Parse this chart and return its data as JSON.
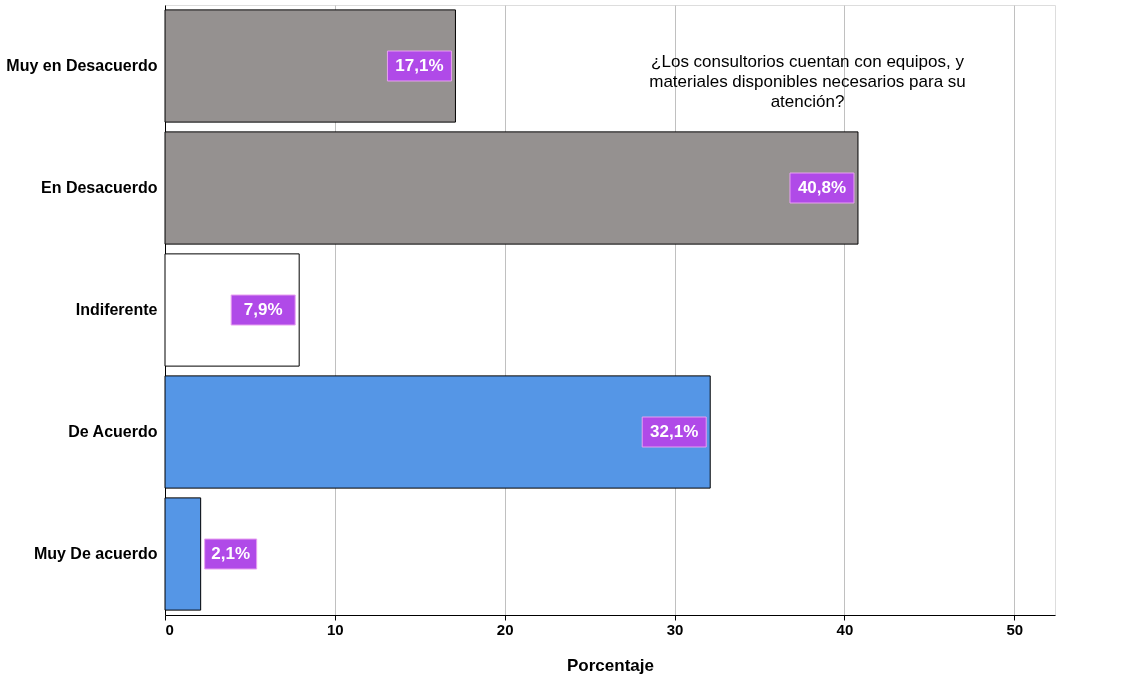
{
  "chart_data": {
    "type": "bar",
    "orientation": "horizontal",
    "categories": [
      "Muy en Desacuerdo",
      "En Desacuerdo",
      "Indiferente",
      "De Acuerdo",
      "Muy De acuerdo"
    ],
    "values": [
      17.1,
      40.8,
      7.9,
      32.1,
      2.1
    ],
    "colors": [
      "#959190",
      "#959190",
      "#ffffff",
      "#5596e6",
      "#5596e6"
    ],
    "value_labels": [
      "17,1%",
      "40,8%",
      "7,9%",
      "32,1%",
      "2,1%"
    ],
    "xlim": [
      0,
      52.4
    ],
    "xticks": [
      0,
      10,
      20,
      30,
      40,
      50
    ],
    "grid": "x",
    "xlabel": "Porcentaje",
    "annotations": [
      "¿Los consultorios cuentan con equipos, y materiales disponibles  necesarios para su atención?"
    ]
  }
}
